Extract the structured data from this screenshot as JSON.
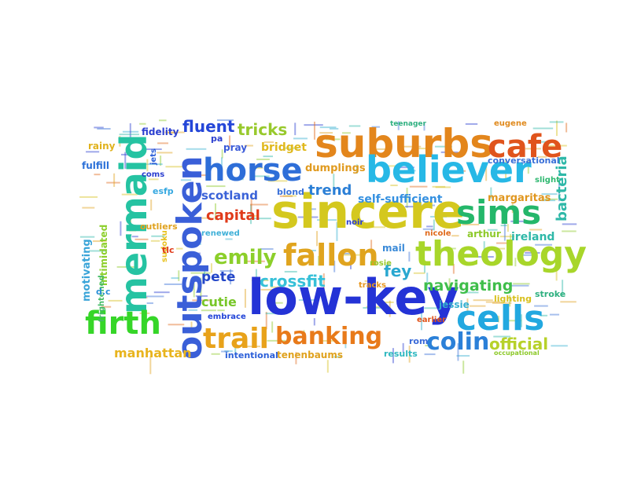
{
  "words": [
    {
      "text": "sincere",
      "color": "#d4c81e"
    },
    {
      "text": "low-key",
      "color": "#2433d6"
    },
    {
      "text": "suburbs",
      "color": "#e3861c"
    },
    {
      "text": "believer",
      "color": "#27b8e6"
    },
    {
      "text": "outspoken",
      "color": "#3a5fd8"
    },
    {
      "text": "mermaid",
      "color": "#25c3a2"
    },
    {
      "text": "theology",
      "color": "#a8d62a"
    },
    {
      "text": "horse",
      "color": "#2e6ed8"
    },
    {
      "text": "cafe",
      "color": "#e0541c"
    },
    {
      "text": "sims",
      "color": "#24b76a"
    },
    {
      "text": "fallon",
      "color": "#e0a41e"
    },
    {
      "text": "firth",
      "color": "#36d628"
    },
    {
      "text": "cells",
      "color": "#22a8e0"
    },
    {
      "text": "trail",
      "color": "#e8a21a"
    },
    {
      "text": "banking",
      "color": "#e87a1a"
    },
    {
      "text": "colin",
      "color": "#2b80d8"
    },
    {
      "text": "emily",
      "color": "#8ccf2a"
    },
    {
      "text": "bacteria",
      "color": "#2fb8a8"
    },
    {
      "text": "crossfit",
      "color": "#36c0d8"
    },
    {
      "text": "navigating",
      "color": "#3fbe4a"
    },
    {
      "text": "fluent",
      "color": "#2446d8"
    },
    {
      "text": "tricks",
      "color": "#98c92c"
    },
    {
      "text": "capital",
      "color": "#e03a1a"
    },
    {
      "text": "official",
      "color": "#b7d12a"
    },
    {
      "text": "trend",
      "color": "#2b7fd6"
    },
    {
      "text": "fey",
      "color": "#2aa8d0"
    },
    {
      "text": "cutie",
      "color": "#77c627"
    },
    {
      "text": "pete",
      "color": "#2346c8"
    },
    {
      "text": "self-sufficient",
      "color": "#3490e0"
    },
    {
      "text": "manhattan",
      "color": "#e8b41e"
    },
    {
      "text": "scotland",
      "color": "#3a62d8"
    },
    {
      "text": "dumplings",
      "color": "#e09a1e"
    },
    {
      "text": "motivating",
      "color": "#3aa4d8"
    },
    {
      "text": "intimidated",
      "color": "#8ccf2a"
    },
    {
      "text": "frightened",
      "color": "#46bc66"
    },
    {
      "text": "bridget",
      "color": "#e0b81c"
    },
    {
      "text": "tenenbaums",
      "color": "#e0a21e"
    },
    {
      "text": "intentional",
      "color": "#2b5fd8"
    },
    {
      "text": "margaritas",
      "color": "#e0961e"
    },
    {
      "text": "conversational",
      "color": "#3a70d8"
    },
    {
      "text": "ireland",
      "color": "#2fb8a8"
    },
    {
      "text": "arthur",
      "color": "#8dc92a"
    },
    {
      "text": "jessie",
      "color": "#36b0d0"
    },
    {
      "text": "lighting",
      "color": "#d8c01e"
    },
    {
      "text": "stroke",
      "color": "#2fb080"
    },
    {
      "text": "rom",
      "color": "#3a6ad8"
    },
    {
      "text": "results",
      "color": "#2fb8c0"
    },
    {
      "text": "tracks",
      "color": "#e8961e"
    },
    {
      "text": "mail",
      "color": "#3a8ad8"
    },
    {
      "text": "rosie",
      "color": "#98c92c"
    },
    {
      "text": "renewed",
      "color": "#3fb0d8"
    },
    {
      "text": "embrace",
      "color": "#2446d8"
    },
    {
      "text": "earlier",
      "color": "#e0541c"
    },
    {
      "text": "nicole",
      "color": "#e06a1c"
    },
    {
      "text": "eugene",
      "color": "#e08a1e"
    },
    {
      "text": "slight",
      "color": "#2fb870"
    },
    {
      "text": "pray",
      "color": "#3a5ad8"
    },
    {
      "text": "blond",
      "color": "#3a70d8"
    },
    {
      "text": "noir",
      "color": "#2b3fd0"
    },
    {
      "text": "outliers",
      "color": "#e0a21e"
    },
    {
      "text": "fidelity",
      "color": "#2b3fd0"
    },
    {
      "text": "rainy",
      "color": "#e0b21e"
    },
    {
      "text": "fulfill",
      "color": "#2b70d8"
    },
    {
      "text": "coms",
      "color": "#2b3fd0"
    },
    {
      "text": "esfp",
      "color": "#36a8e0"
    },
    {
      "text": "sudoku",
      "color": "#e8c21e"
    },
    {
      "text": "tlc",
      "color": "#e03a1a"
    },
    {
      "text": "d.c",
      "color": "#2b90d8"
    },
    {
      "text": "jets",
      "color": "#2b5fd8"
    },
    {
      "text": "pa",
      "color": "#2b3fd0"
    },
    {
      "text": "teenager",
      "color": "#2fb080"
    },
    {
      "text": "occupational",
      "color": "#8dc92a"
    }
  ]
}
